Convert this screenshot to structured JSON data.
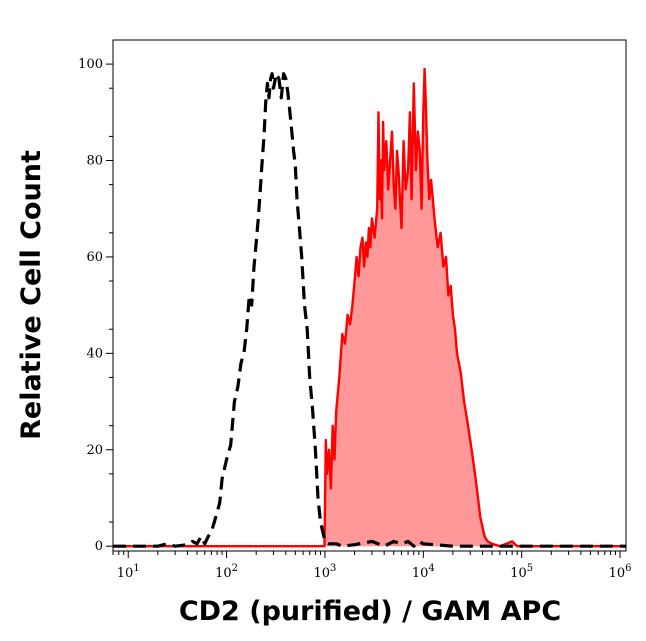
{
  "chart_data": {
    "type": "area",
    "title": "",
    "xlabel": "CD2 (purified) / GAM APC",
    "ylabel": "Relative Cell Count",
    "x_scale": "log",
    "xlim": [
      7,
      1150000
    ],
    "ylim": [
      -1,
      105
    ],
    "grid": false,
    "x_ticks": [
      {
        "base": "10",
        "exp": "1",
        "value": 10
      },
      {
        "base": "10",
        "exp": "2",
        "value": 100
      },
      {
        "base": "10",
        "exp": "3",
        "value": 1000
      },
      {
        "base": "10",
        "exp": "4",
        "value": 10000
      },
      {
        "base": "10",
        "exp": "5",
        "value": 100000
      },
      {
        "base": "10",
        "exp": "6",
        "value": 1000000
      }
    ],
    "y_ticks": [
      "0",
      "20",
      "40",
      "60",
      "80",
      "100"
    ],
    "series": [
      {
        "style": "dashed",
        "color": "#000000",
        "fill": "none",
        "points": [
          [
            7,
            0
          ],
          [
            20,
            0
          ],
          [
            25,
            0.5
          ],
          [
            30,
            0
          ],
          [
            40,
            0.3
          ],
          [
            45,
            1
          ],
          [
            50,
            0.5
          ],
          [
            55,
            2
          ],
          [
            60,
            0.5
          ],
          [
            65,
            2
          ],
          [
            70,
            3
          ],
          [
            75,
            5
          ],
          [
            80,
            7
          ],
          [
            85,
            9
          ],
          [
            90,
            14
          ],
          [
            100,
            18
          ],
          [
            110,
            21
          ],
          [
            120,
            30
          ],
          [
            130,
            33
          ],
          [
            140,
            38
          ],
          [
            150,
            40
          ],
          [
            160,
            45
          ],
          [
            170,
            52
          ],
          [
            180,
            50
          ],
          [
            190,
            58
          ],
          [
            200,
            63
          ],
          [
            210,
            68
          ],
          [
            220,
            74
          ],
          [
            230,
            80
          ],
          [
            240,
            85
          ],
          [
            250,
            92
          ],
          [
            260,
            96
          ],
          [
            270,
            93
          ],
          [
            280,
            97
          ],
          [
            290,
            98
          ],
          [
            300,
            95
          ],
          [
            320,
            98
          ],
          [
            340,
            97
          ],
          [
            360,
            93
          ],
          [
            380,
            98
          ],
          [
            400,
            97
          ],
          [
            420,
            94
          ],
          [
            440,
            90
          ],
          [
            460,
            86
          ],
          [
            480,
            82
          ],
          [
            500,
            79
          ],
          [
            520,
            72
          ],
          [
            550,
            66
          ],
          [
            580,
            60
          ],
          [
            620,
            50
          ],
          [
            660,
            45
          ],
          [
            700,
            35
          ],
          [
            750,
            28
          ],
          [
            800,
            20
          ],
          [
            850,
            10
          ],
          [
            900,
            5
          ],
          [
            950,
            3
          ],
          [
            1000,
            1
          ],
          [
            1100,
            0.5
          ],
          [
            1300,
            0.5
          ],
          [
            1500,
            0
          ],
          [
            2000,
            0.3
          ],
          [
            3000,
            1
          ],
          [
            4000,
            0
          ],
          [
            5000,
            1
          ],
          [
            6000,
            0.5
          ],
          [
            7000,
            1
          ],
          [
            8000,
            0
          ],
          [
            9000,
            1
          ],
          [
            10000,
            0.5
          ],
          [
            20000,
            0
          ],
          [
            1150000,
            0
          ]
        ]
      },
      {
        "style": "solid",
        "color": "#ff0000",
        "fill": "#ff9999",
        "points": [
          [
            7,
            0
          ],
          [
            900,
            0
          ],
          [
            990,
            0
          ],
          [
            1000,
            8
          ],
          [
            1020,
            22
          ],
          [
            1050,
            15
          ],
          [
            1100,
            20
          ],
          [
            1150,
            12
          ],
          [
            1200,
            25
          ],
          [
            1250,
            18
          ],
          [
            1300,
            28
          ],
          [
            1400,
            35
          ],
          [
            1500,
            44
          ],
          [
            1600,
            42
          ],
          [
            1700,
            48
          ],
          [
            1800,
            46
          ],
          [
            1900,
            50
          ],
          [
            2000,
            55
          ],
          [
            2100,
            60
          ],
          [
            2200,
            56
          ],
          [
            2300,
            62
          ],
          [
            2400,
            64
          ],
          [
            2500,
            58
          ],
          [
            2600,
            63
          ],
          [
            2700,
            60
          ],
          [
            2800,
            66
          ],
          [
            2900,
            62
          ],
          [
            3000,
            68
          ],
          [
            3200,
            64
          ],
          [
            3400,
            70
          ],
          [
            3500,
            90
          ],
          [
            3600,
            72
          ],
          [
            3700,
            80
          ],
          [
            3800,
            68
          ],
          [
            3900,
            88
          ],
          [
            4000,
            78
          ],
          [
            4200,
            84
          ],
          [
            4400,
            74
          ],
          [
            4600,
            80
          ],
          [
            4800,
            86
          ],
          [
            5000,
            75
          ],
          [
            5200,
            70
          ],
          [
            5400,
            82
          ],
          [
            5600,
            78
          ],
          [
            5800,
            72
          ],
          [
            6000,
            66
          ],
          [
            6300,
            84
          ],
          [
            6600,
            74
          ],
          [
            7000,
            78
          ],
          [
            7300,
            90
          ],
          [
            7600,
            72
          ],
          [
            8000,
            96
          ],
          [
            8400,
            78
          ],
          [
            8800,
            86
          ],
          [
            9200,
            82
          ],
          [
            9600,
            70
          ],
          [
            10000,
            90
          ],
          [
            10300,
            99
          ],
          [
            10600,
            92
          ],
          [
            11000,
            80
          ],
          [
            11500,
            72
          ],
          [
            12000,
            76
          ],
          [
            13000,
            68
          ],
          [
            14000,
            62
          ],
          [
            15000,
            65
          ],
          [
            16000,
            58
          ],
          [
            17000,
            60
          ],
          [
            18000,
            52
          ],
          [
            19000,
            54
          ],
          [
            20000,
            48
          ],
          [
            21000,
            45
          ],
          [
            22000,
            40
          ],
          [
            24000,
            36
          ],
          [
            26000,
            30
          ],
          [
            28000,
            26
          ],
          [
            30000,
            22
          ],
          [
            32000,
            18
          ],
          [
            34000,
            14
          ],
          [
            36000,
            10
          ],
          [
            38000,
            6
          ],
          [
            40000,
            4
          ],
          [
            42000,
            2
          ],
          [
            45000,
            1
          ],
          [
            50000,
            0.5
          ],
          [
            60000,
            0
          ],
          [
            80000,
            1
          ],
          [
            90000,
            0
          ],
          [
            120000,
            0
          ],
          [
            1150000,
            0
          ]
        ]
      }
    ]
  }
}
